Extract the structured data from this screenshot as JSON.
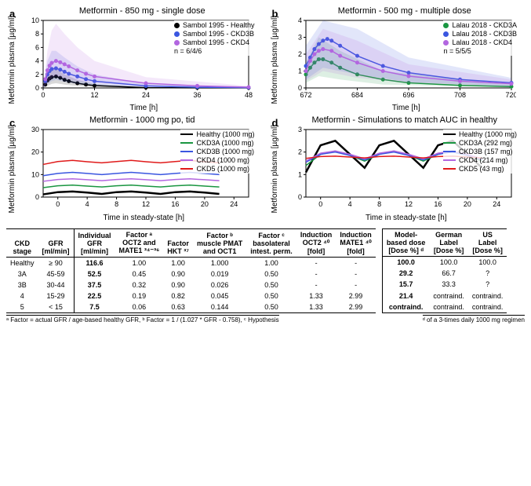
{
  "panels": {
    "a": {
      "label": "a",
      "title": "Metformin - 850 mg - single dose",
      "ylabel": "Metformin plasma [µg/ml]",
      "xlabel": "Time [h]",
      "xlim": [
        0,
        48
      ],
      "xticks": [
        0,
        12,
        24,
        36,
        48
      ],
      "ylim": [
        0,
        10
      ],
      "yticks": [
        0,
        2,
        4,
        6,
        8,
        10
      ],
      "bg": "#ffffff",
      "series": [
        {
          "name": "Sambol 1995 - Healthy",
          "color": "#000000",
          "type": "points_line_band",
          "points": [
            [
              0.5,
              0.5
            ],
            [
              1,
              1.1
            ],
            [
              1.5,
              1.4
            ],
            [
              2,
              1.6
            ],
            [
              3,
              1.7
            ],
            [
              4,
              1.5
            ],
            [
              5,
              1.2
            ],
            [
              6,
              1.0
            ],
            [
              8,
              0.7
            ],
            [
              10,
              0.5
            ],
            [
              12,
              0.35
            ],
            [
              24,
              0.05
            ],
            [
              36,
              0.02
            ],
            [
              48,
              0.01
            ]
          ],
          "band": [
            [
              0,
              0,
              0
            ],
            [
              1,
              0.3,
              2.2
            ],
            [
              2,
              0.6,
              2.8
            ],
            [
              3,
              0.7,
              2.8
            ],
            [
              5,
              0.5,
              2.0
            ],
            [
              8,
              0.3,
              1.2
            ],
            [
              12,
              0.15,
              0.6
            ],
            [
              24,
              0.02,
              0.1
            ],
            [
              48,
              0,
              0.02
            ]
          ]
        },
        {
          "name": "Sambol 1995 - CKD3B",
          "color": "#3a56e0",
          "type": "points_line_band",
          "points": [
            [
              0.5,
              1.0
            ],
            [
              1,
              2.0
            ],
            [
              1.5,
              2.5
            ],
            [
              2,
              2.8
            ],
            [
              3,
              2.9
            ],
            [
              4,
              2.7
            ],
            [
              5,
              2.4
            ],
            [
              6,
              2.1
            ],
            [
              8,
              1.7
            ],
            [
              10,
              1.3
            ],
            [
              12,
              1.0
            ],
            [
              24,
              0.3
            ],
            [
              36,
              0.1
            ],
            [
              48,
              0.04
            ]
          ],
          "band": [
            [
              0,
              0,
              0
            ],
            [
              1,
              0.6,
              4.0
            ],
            [
              2,
              1.0,
              5.5
            ],
            [
              3,
              1.2,
              5.5
            ],
            [
              5,
              0.9,
              4.5
            ],
            [
              8,
              0.6,
              3.2
            ],
            [
              12,
              0.4,
              2.0
            ],
            [
              24,
              0.1,
              0.6
            ],
            [
              48,
              0.01,
              0.1
            ]
          ]
        },
        {
          "name": "Sambol 1995 - CKD4",
          "color": "#b266e0",
          "type": "points_line_band",
          "points": [
            [
              0.5,
              1.3
            ],
            [
              1,
              2.6
            ],
            [
              1.5,
              3.3
            ],
            [
              2,
              3.7
            ],
            [
              3,
              4.0
            ],
            [
              4,
              3.8
            ],
            [
              5,
              3.5
            ],
            [
              6,
              3.2
            ],
            [
              8,
              2.6
            ],
            [
              10,
              2.1
            ],
            [
              12,
              1.7
            ],
            [
              24,
              0.7
            ],
            [
              36,
              0.3
            ],
            [
              48,
              0.12
            ]
          ],
          "band": [
            [
              0,
              0,
              0
            ],
            [
              1,
              0.8,
              5.5
            ],
            [
              2,
              1.5,
              8.5
            ],
            [
              3,
              1.8,
              9.5
            ],
            [
              5,
              1.4,
              8.0
            ],
            [
              8,
              1.0,
              6.0
            ],
            [
              12,
              0.7,
              4.0
            ],
            [
              24,
              0.25,
              1.6
            ],
            [
              48,
              0.04,
              0.3
            ]
          ]
        }
      ],
      "extra_legend": "n = 6/4/6"
    },
    "b": {
      "label": "b",
      "title": "Metformin - 500 mg - multiple dose",
      "ylabel": "Metformin plasma [µg/ml]",
      "xlabel": "Time [h]",
      "xlim": [
        672,
        720
      ],
      "xticks": [
        672,
        684,
        696,
        708,
        720
      ],
      "ylim": [
        0,
        4
      ],
      "yticks": [
        0,
        1,
        2,
        3,
        4
      ],
      "series": [
        {
          "name": "Lalau 2018 - CKD3A",
          "color": "#1a9641",
          "type": "points_line_band",
          "points": [
            [
              672,
              0.8
            ],
            [
              673,
              1.2
            ],
            [
              674,
              1.5
            ],
            [
              675,
              1.7
            ],
            [
              676,
              1.7
            ],
            [
              678,
              1.5
            ],
            [
              680,
              1.2
            ],
            [
              684,
              0.8
            ],
            [
              690,
              0.5
            ],
            [
              696,
              0.3
            ],
            [
              708,
              0.15
            ],
            [
              720,
              0.08
            ]
          ],
          "band": [
            [
              672,
              0.3,
              1.5
            ],
            [
              675,
              0.7,
              3.0
            ],
            [
              680,
              0.5,
              2.2
            ],
            [
              690,
              0.2,
              1.0
            ],
            [
              720,
              0.03,
              0.2
            ]
          ]
        },
        {
          "name": "Lalau 2018 - CKD3B",
          "color": "#3a56e0",
          "type": "points_line_band",
          "points": [
            [
              672,
              1.3
            ],
            [
              673,
              1.8
            ],
            [
              674,
              2.3
            ],
            [
              675,
              2.6
            ],
            [
              676,
              2.8
            ],
            [
              677,
              2.9
            ],
            [
              678,
              2.8
            ],
            [
              680,
              2.5
            ],
            [
              684,
              1.9
            ],
            [
              690,
              1.3
            ],
            [
              696,
              0.9
            ],
            [
              708,
              0.5
            ],
            [
              720,
              0.3
            ]
          ],
          "band": [
            [
              672,
              0.5,
              2.5
            ],
            [
              676,
              1.2,
              4.0
            ],
            [
              684,
              0.8,
              3.5
            ],
            [
              696,
              0.35,
              1.8
            ],
            [
              720,
              0.1,
              0.6
            ]
          ]
        },
        {
          "name": "Lalau 2018 - CKD4",
          "color": "#b266e0",
          "type": "points_line_band",
          "points": [
            [
              672,
              1.0
            ],
            [
              673,
              1.6
            ],
            [
              674,
              2.0
            ],
            [
              675,
              2.2
            ],
            [
              676,
              2.3
            ],
            [
              678,
              2.2
            ],
            [
              680,
              1.9
            ],
            [
              684,
              1.5
            ],
            [
              690,
              1.0
            ],
            [
              696,
              0.7
            ],
            [
              708,
              0.4
            ],
            [
              720,
              0.25
            ]
          ],
          "band": [
            [
              672,
              0.4,
              2.0
            ],
            [
              676,
              1.0,
              3.5
            ],
            [
              684,
              0.6,
              2.8
            ],
            [
              696,
              0.3,
              1.4
            ],
            [
              720,
              0.08,
              0.5
            ]
          ]
        }
      ],
      "extra_legend": "n = 5/5/5"
    },
    "c": {
      "label": "c",
      "title": "Metformin - 1000 mg po, tid",
      "ylabel": "Metformin plasma [µg/ml]",
      "xlabel": "Time in steady-state [h]",
      "xlim": [
        -2,
        26
      ],
      "xticks": [
        0,
        4,
        8,
        12,
        16,
        20,
        24
      ],
      "ylim": [
        0,
        30
      ],
      "yticks": [
        0,
        10,
        20,
        30
      ],
      "series": [
        {
          "name": "Healthy (1000 mg)",
          "color": "#000000",
          "type": "line",
          "width": 2.5,
          "y": [
            1.2,
            2.2,
            2.5,
            2.0,
            1.4,
            2.2,
            2.5,
            2.0,
            1.4,
            2.2,
            2.5,
            2.0,
            1.4
          ]
        },
        {
          "name": "CKD3A (1000 mg)",
          "color": "#1a9641",
          "type": "line",
          "width": 1.5,
          "y": [
            4.2,
            5.0,
            5.3,
            4.9,
            4.5,
            5.0,
            5.3,
            4.9,
            4.5,
            5.0,
            5.3,
            4.9,
            4.5
          ]
        },
        {
          "name": "CKD3B (1000 mg)",
          "color": "#3a56e0",
          "type": "line",
          "width": 1.5,
          "y": [
            9.5,
            10.5,
            11.0,
            10.5,
            10.0,
            10.5,
            11.0,
            10.5,
            10.0,
            10.5,
            11.0,
            10.5,
            10.0
          ]
        },
        {
          "name": "CKD4 (1000 mg)",
          "color": "#b266e0",
          "type": "line",
          "width": 1.5,
          "y": [
            7.0,
            7.8,
            8.1,
            7.7,
            7.3,
            7.8,
            8.1,
            7.7,
            7.3,
            7.8,
            8.1,
            7.7,
            7.3
          ]
        },
        {
          "name": "CKD5 (1000 mg)",
          "color": "#e01a1a",
          "type": "line",
          "width": 1.5,
          "y": [
            14.5,
            15.8,
            16.3,
            15.7,
            15.2,
            15.8,
            16.3,
            15.7,
            15.2,
            15.8,
            16.3,
            15.7,
            15.2
          ]
        }
      ],
      "line_x": [
        -2,
        0,
        2,
        4,
        6,
        8,
        10,
        12,
        14,
        16,
        18,
        20,
        22
      ]
    },
    "d": {
      "label": "d",
      "title": "Metformin - Simulations to match AUC in healthy",
      "ylabel": "Metformin plasma [µg/ml]",
      "xlabel": "Time in steady-state [h]",
      "xlim": [
        -2,
        26
      ],
      "xticks": [
        0,
        4,
        8,
        12,
        16,
        20,
        24
      ],
      "ylim": [
        0,
        3
      ],
      "yticks": [
        0,
        1,
        2,
        3
      ],
      "series": [
        {
          "name": "Healthy (1000 mg)",
          "color": "#000000",
          "type": "line",
          "width": 2.5,
          "y": [
            1.1,
            2.3,
            2.5,
            1.9,
            1.3,
            2.3,
            2.5,
            1.9,
            1.3,
            2.3,
            2.5,
            1.9,
            1.3
          ]
        },
        {
          "name": "CKD3A (292 mg)",
          "color": "#1a9641",
          "type": "line",
          "width": 1.5,
          "y": [
            1.4,
            1.9,
            2.05,
            1.85,
            1.6,
            1.9,
            2.05,
            1.85,
            1.6,
            1.9,
            2.05,
            1.85,
            1.6
          ]
        },
        {
          "name": "CKD3B (157 mg)",
          "color": "#3a56e0",
          "type": "line",
          "width": 1.5,
          "y": [
            1.55,
            1.9,
            2.0,
            1.85,
            1.65,
            1.9,
            2.0,
            1.85,
            1.65,
            1.9,
            2.0,
            1.85,
            1.65
          ]
        },
        {
          "name": "CKD4 (214 mg)",
          "color": "#b266e0",
          "type": "line",
          "width": 1.5,
          "y": [
            1.6,
            1.95,
            2.05,
            1.9,
            1.7,
            1.95,
            2.05,
            1.9,
            1.7,
            1.95,
            2.05,
            1.9,
            1.7
          ]
        },
        {
          "name": "CKD5 (43 mg)",
          "color": "#e01a1a",
          "type": "line",
          "width": 1.5,
          "y": [
            1.72,
            1.8,
            1.82,
            1.78,
            1.74,
            1.8,
            1.82,
            1.78,
            1.74,
            1.8,
            1.82,
            1.78,
            1.74
          ]
        }
      ],
      "line_x": [
        -2,
        0,
        2,
        4,
        6,
        8,
        10,
        12,
        14,
        16,
        18,
        20,
        22
      ]
    }
  },
  "table": {
    "headers_left": [
      "CKD\nstage",
      "GFR\n[ml/min]",
      "Individual\nGFR\n[ml/min]",
      "Factor ᵃ\nOCT2 and\nMATE1 ³⁴⁻³⁶",
      "Factor\nHKT ³⁷",
      "Factor ᵇ\nmuscle PMAT\nand OCT1",
      "Factor ᶜ\nbasolateral\nintest. perm.",
      "Induction\nOCT2 ⁴⁰\n[fold]",
      "Induction\nMATE1 ⁴⁰\n[fold]"
    ],
    "headers_right": [
      "Model-\nbased dose\n[Dose %] ᵈ",
      "German\nLabel\n[Dose %]",
      "US\nLabel\n[Dose %]"
    ],
    "rows": [
      {
        "stage": "Healthy",
        "gfr": "≥ 90",
        "igfr": "116.6",
        "f_oct2": "1.00",
        "f_hkt": "1.00",
        "f_pmat": "1.000",
        "f_bas": "1.00",
        "i_oct2": "-",
        "i_mate": "-",
        "mbd": "100.0",
        "ger": "100.0",
        "us": "100.0"
      },
      {
        "stage": "3A",
        "gfr": "45-59",
        "igfr": "52.5",
        "f_oct2": "0.45",
        "f_hkt": "0.90",
        "f_pmat": "0.019",
        "f_bas": "0.50",
        "i_oct2": "-",
        "i_mate": "-",
        "mbd": "29.2",
        "ger": "66.7",
        "us": "?"
      },
      {
        "stage": "3B",
        "gfr": "30-44",
        "igfr": "37.5",
        "f_oct2": "0.32",
        "f_hkt": "0.90",
        "f_pmat": "0.026",
        "f_bas": "0.50",
        "i_oct2": "-",
        "i_mate": "-",
        "mbd": "15.7",
        "ger": "33.3",
        "us": "?"
      },
      {
        "stage": "4",
        "gfr": "15-29",
        "igfr": "22.5",
        "f_oct2": "0.19",
        "f_hkt": "0.82",
        "f_pmat": "0.045",
        "f_bas": "0.50",
        "i_oct2": "1.33",
        "i_mate": "2.99",
        "mbd": "21.4",
        "ger": "contraind.",
        "us": "contraind."
      },
      {
        "stage": "5",
        "gfr": "< 15",
        "igfr": "7.5",
        "f_oct2": "0.06",
        "f_hkt": "0.63",
        "f_pmat": "0.144",
        "f_bas": "0.50",
        "i_oct2": "1.33",
        "i_mate": "2.99",
        "mbd": "contraind.",
        "ger": "contraind.",
        "us": "contraind."
      }
    ],
    "footnotes_left": "ᵃ Factor = actual GFR / age-based healthy GFR,   ᵇ Factor = 1 / (1.027 * GFR - 0.758),   ᶜ Hypothesis",
    "footnotes_right": "ᵈ of a 3-times daily 1000 mg regimen"
  }
}
